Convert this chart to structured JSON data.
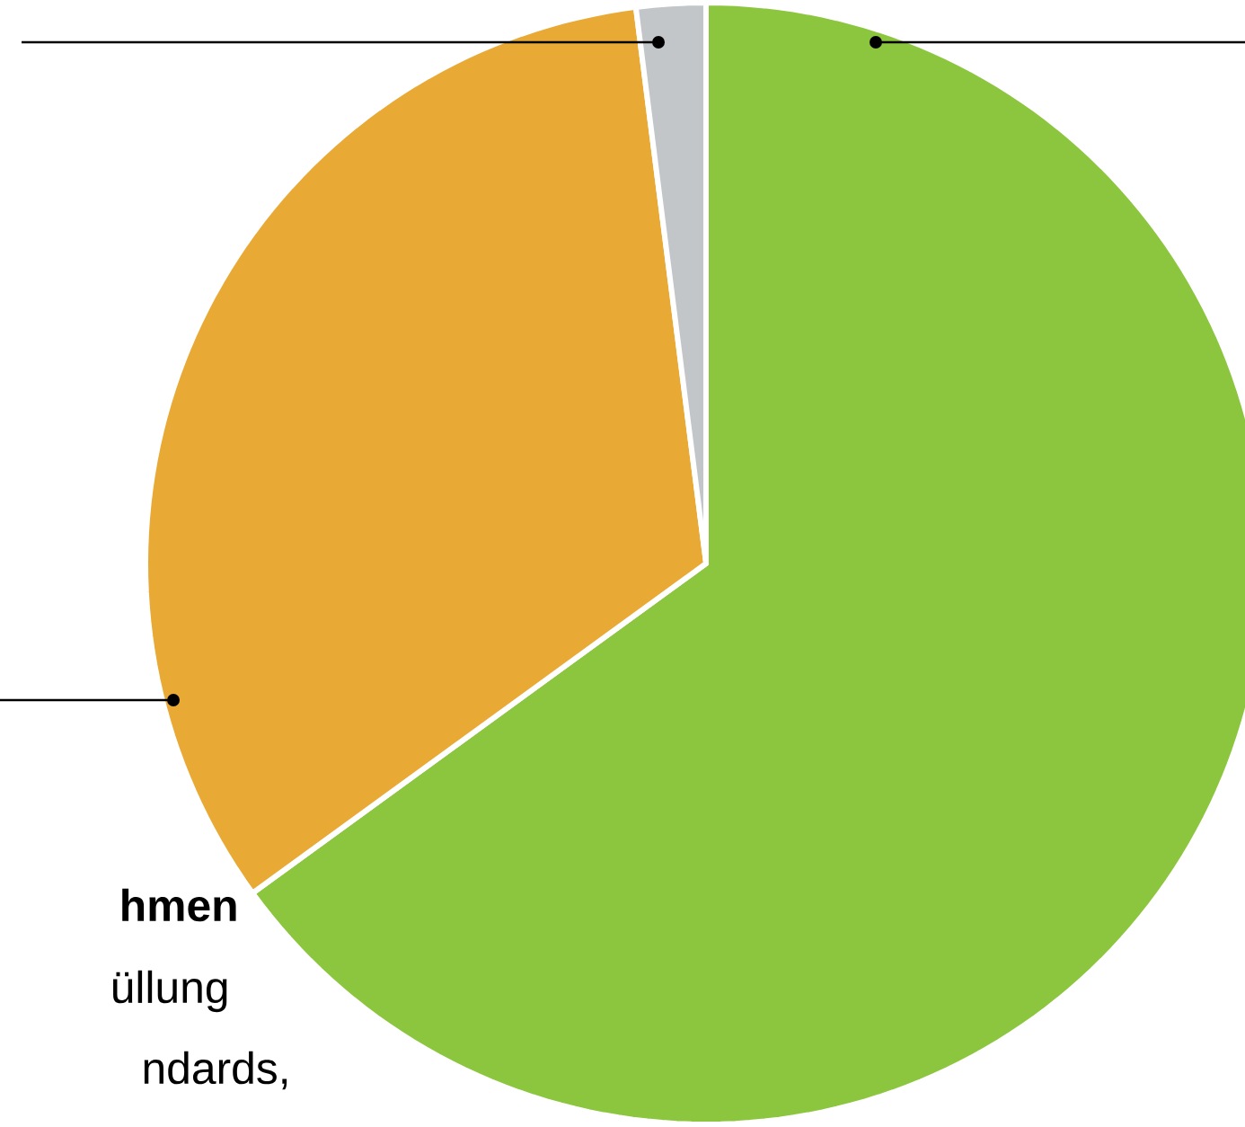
{
  "chart_data": {
    "type": "pie",
    "categories": [
      null,
      null,
      null
    ],
    "values": [
      65,
      33,
      2
    ],
    "colors": [
      "#8cc63f",
      "#e9a935",
      "#c3c6c9"
    ],
    "annotations": [
      "**hmen**",
      "üllung",
      "ndards,"
    ]
  }
}
